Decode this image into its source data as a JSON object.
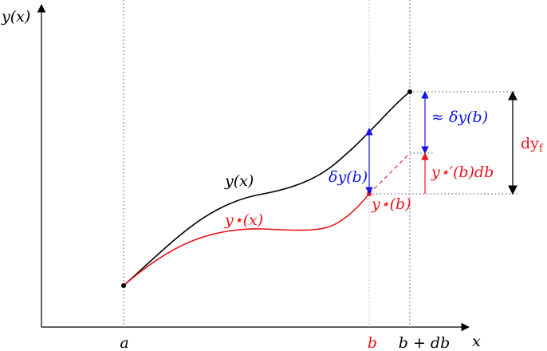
{
  "axes": {
    "y_label": "y(x)",
    "x_label": "x"
  },
  "ticks": {
    "a": "a",
    "b": "b",
    "b_db": "b + db"
  },
  "curves": {
    "y_label": "y(x)",
    "y_star_label": "y⋆(x)"
  },
  "annotations": {
    "delta_y_b": "δy(b)",
    "y_star_b": "y⋆(b)",
    "approx_delta_y_b": "≈ δy(b)",
    "y_star_prime_db": "y⋆′(b)db",
    "dy_f": "dy",
    "dy_f_sub": "f"
  },
  "colors": {
    "black": "#000000",
    "red": "#e8141b",
    "blue": "#1414e6",
    "dotted_red": "#f0a0a0",
    "dotted_gray": "#555555"
  }
}
